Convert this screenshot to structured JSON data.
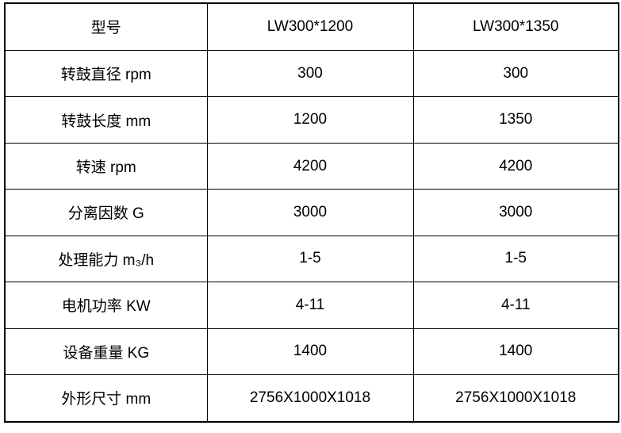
{
  "accent_colors": {
    "border": "#000000",
    "text": "#000000",
    "background": "#ffffff"
  },
  "table": {
    "header": {
      "label": "型号",
      "model1": "LW300*1200",
      "model2": "LW300*1350"
    },
    "rows": [
      {
        "label": "转鼓直径 rpm",
        "values": [
          "300",
          "300"
        ]
      },
      {
        "label": "转鼓长度 mm",
        "values": [
          "1200",
          "1350"
        ]
      },
      {
        "label": "转速 rpm",
        "values": [
          "4200",
          "4200"
        ]
      },
      {
        "label": "分离因数 G",
        "values": [
          "3000",
          "3000"
        ]
      },
      {
        "label": "处理能力 m₃/h",
        "values": [
          "1-5",
          "1-5"
        ]
      },
      {
        "label": "电机功率 KW",
        "values": [
          "4-11",
          "4-11"
        ]
      },
      {
        "label": "设备重量 KG",
        "values": [
          "1400",
          "1400"
        ]
      },
      {
        "label": "外形尺寸 mm",
        "values": [
          "2756X1000X1018",
          "2756X1000X1018"
        ]
      }
    ]
  }
}
